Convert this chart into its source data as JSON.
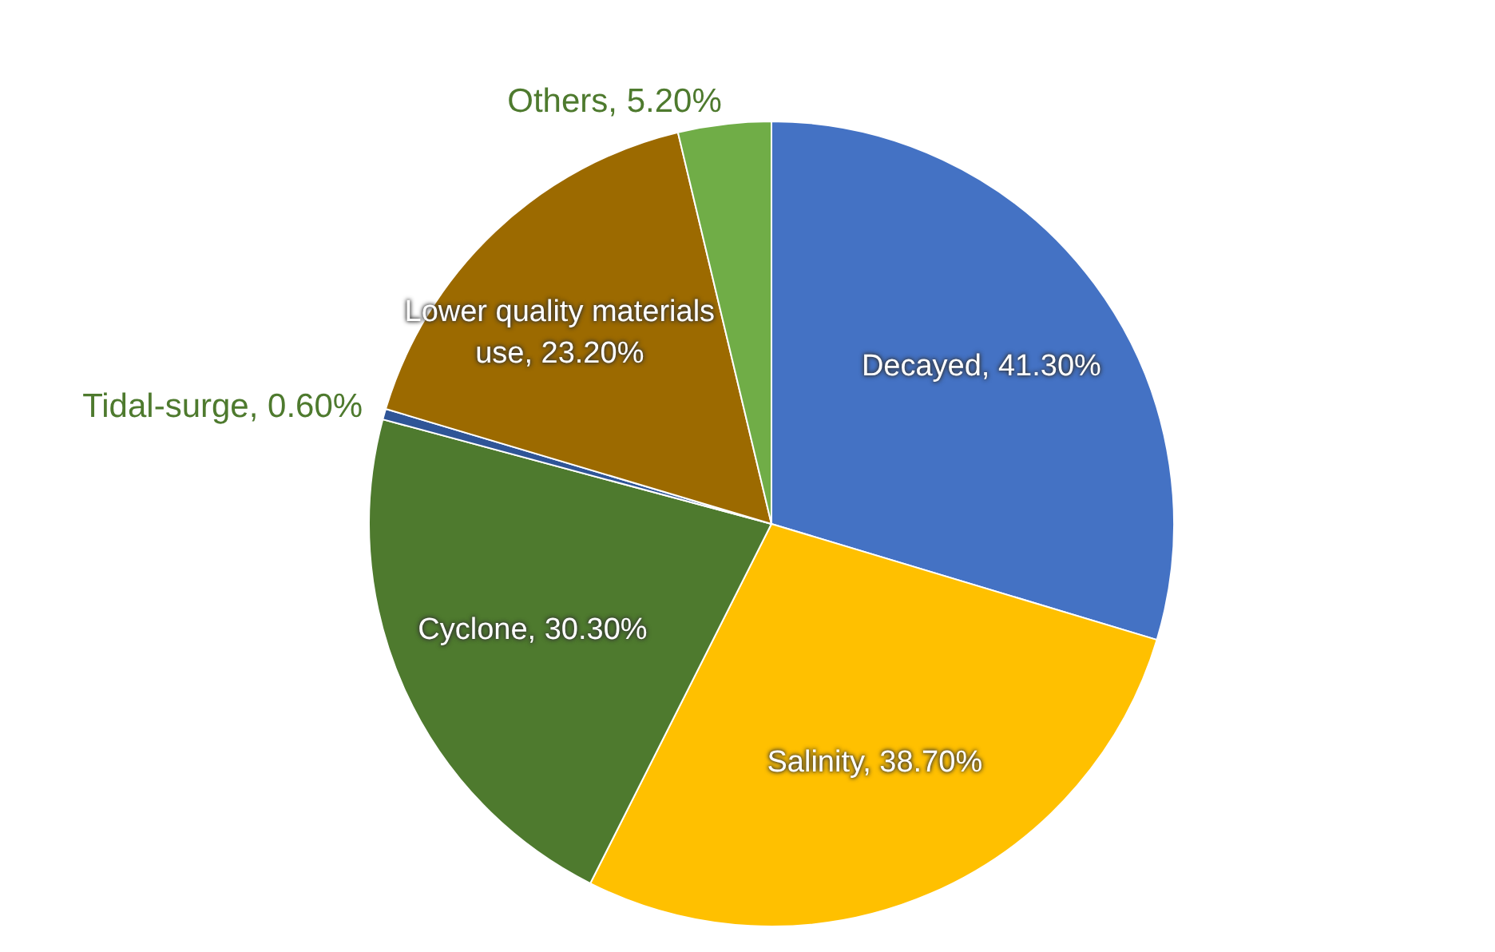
{
  "chart_data": {
    "type": "pie",
    "categories": [
      "Decayed",
      "Salinity",
      "Cyclone",
      "Tidal-surge",
      "Lower quality materials use",
      "Others"
    ],
    "values": [
      41.3,
      38.7,
      30.3,
      0.6,
      23.2,
      5.2
    ],
    "value_labels": [
      "41.30%",
      "38.70%",
      "30.30%",
      "0.60%",
      "23.20%",
      "5.20%"
    ],
    "colors": [
      "#4472c4",
      "#ffc000",
      "#4e7a2e",
      "#2f5597",
      "#9c6a00",
      "#70ad47"
    ],
    "legend": false
  }
}
